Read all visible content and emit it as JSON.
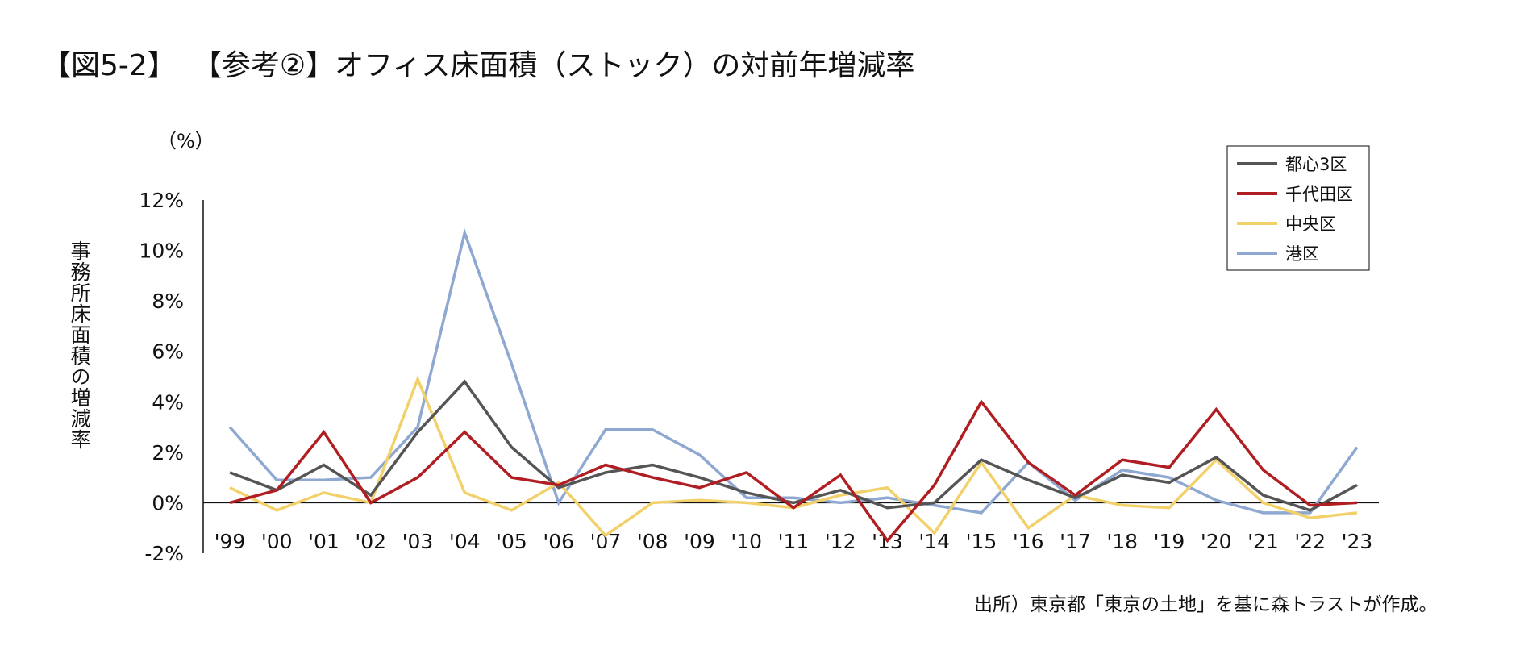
{
  "title": {
    "figure_no": "【図5-2】",
    "text": "【参考②】オフィス床面積（ストック）の対前年増減率"
  },
  "unit_label": "（%）",
  "y_axis_label": "事務所床面積の増減率",
  "source": "出所）東京都「東京の土地」を基に森トラストが作成。",
  "chart_data": {
    "type": "line",
    "title": "【参考②】オフィス床面積（ストック）の対前年増減率",
    "xlabel": "",
    "ylabel": "事務所床面積の増減率",
    "ylim": [
      -2,
      12
    ],
    "yticks": [
      -2,
      0,
      2,
      4,
      6,
      8,
      10,
      12
    ],
    "ytick_labels": [
      "-2%",
      "0%",
      "2%",
      "4%",
      "6%",
      "8%",
      "10%",
      "12%"
    ],
    "categories": [
      "'99",
      "'00",
      "'01",
      "'02",
      "'03",
      "'04",
      "'05",
      "'06",
      "'07",
      "'08",
      "'09",
      "'10",
      "'11",
      "'12",
      "'13",
      "'14",
      "'15",
      "'16",
      "'17",
      "'18",
      "'19",
      "'20",
      "'21",
      "'22",
      "'23"
    ],
    "legend_position": "top-right",
    "series": [
      {
        "name": "都心3区",
        "color": "#555555",
        "values": [
          1.2,
          0.5,
          1.5,
          0.3,
          2.8,
          4.8,
          2.2,
          0.6,
          1.2,
          1.5,
          1.0,
          0.4,
          0.0,
          0.5,
          -0.2,
          0.0,
          1.7,
          0.9,
          0.2,
          1.1,
          0.8,
          1.8,
          0.3,
          -0.3,
          0.7
        ]
      },
      {
        "name": "千代田区",
        "color": "#b01e23",
        "values": [
          0.0,
          0.5,
          2.8,
          0.0,
          1.0,
          2.8,
          1.0,
          0.7,
          1.5,
          1.0,
          0.6,
          1.2,
          -0.2,
          1.1,
          -1.5,
          0.7,
          4.0,
          1.6,
          0.3,
          1.7,
          1.4,
          3.7,
          1.3,
          -0.1,
          0.0
        ]
      },
      {
        "name": "中央区",
        "color": "#f2d16b",
        "values": [
          0.6,
          -0.3,
          0.4,
          0.0,
          4.9,
          0.4,
          -0.3,
          0.8,
          -1.3,
          0.0,
          0.1,
          0.0,
          -0.2,
          0.3,
          0.6,
          -1.2,
          1.6,
          -1.0,
          0.3,
          -0.1,
          -0.2,
          1.7,
          0.0,
          -0.6,
          -0.4
        ]
      },
      {
        "name": "港区",
        "color": "#8fa8d2",
        "values": [
          3.0,
          0.9,
          0.9,
          1.0,
          3.0,
          10.7,
          5.5,
          0.0,
          2.9,
          2.9,
          1.9,
          0.2,
          0.2,
          0.0,
          0.2,
          -0.1,
          -0.4,
          1.6,
          0.1,
          1.3,
          1.0,
          0.1,
          -0.4,
          -0.4,
          2.2
        ]
      }
    ]
  }
}
